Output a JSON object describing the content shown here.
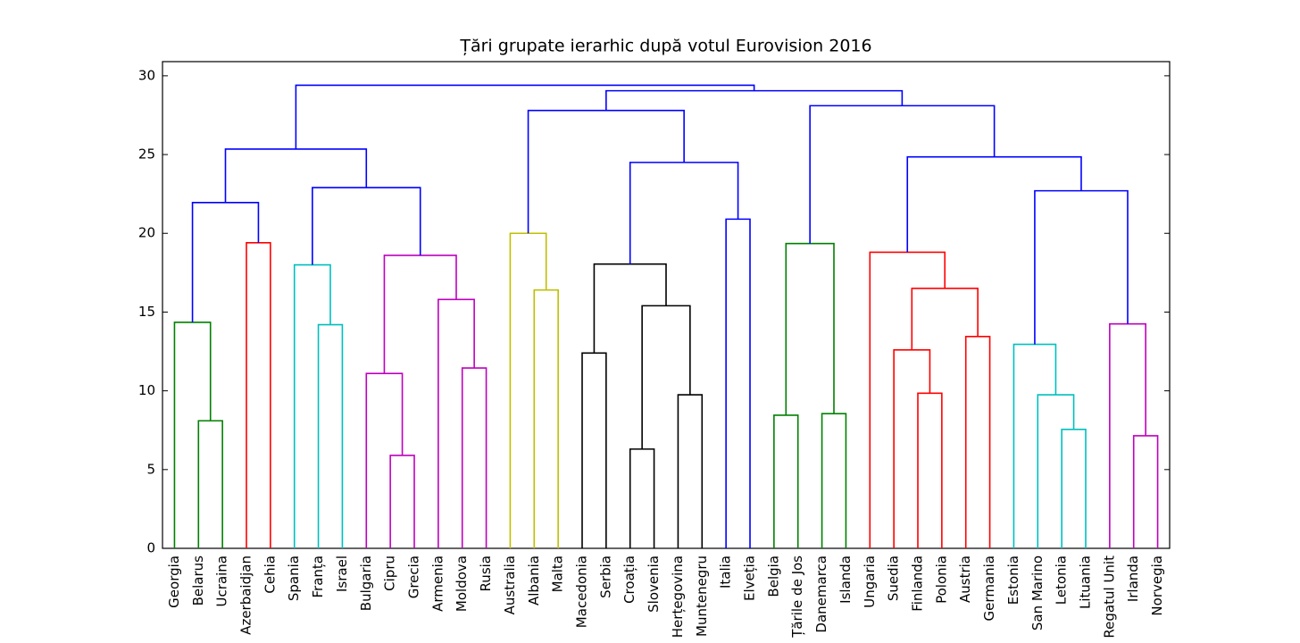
{
  "chart_data": {
    "type": "dendrogram",
    "title": "Țări grupate ierarhic după votul Eurovision 2016",
    "categories": [
      "Georgia",
      "Belarus",
      "Ucraina",
      "Azerbaidjan",
      "Cehia",
      "Spania",
      "Franța",
      "Israel",
      "Bulgaria",
      "Cipru",
      "Grecia",
      "Armenia",
      "Moldova",
      "Rusia",
      "Australia",
      "Albania",
      "Malta",
      "Macedonia",
      "Serbia",
      "Croația",
      "Slovenia",
      "Herțegovina",
      "Muntenegru",
      "Italia",
      "Elveția",
      "Belgia",
      "Țările de Jos",
      "Danemarca",
      "Islanda",
      "Ungaria",
      "Suedia",
      "Finlanda",
      "Polonia",
      "Austria",
      "Germania",
      "Estonia",
      "San Marino",
      "Letonia",
      "Lituania",
      "Regatul Unit",
      "Irlanda",
      "Norvegia"
    ],
    "links": [
      {
        "children": [
          1,
          2
        ],
        "height": 8.1,
        "color": "#008000"
      },
      {
        "children": [
          0,
          42
        ],
        "height": 14.35,
        "color": "#008000"
      },
      {
        "children": [
          3,
          4
        ],
        "height": 19.4,
        "color": "#ff0000"
      },
      {
        "children": [
          43,
          44
        ],
        "height": 21.95,
        "color": "#0000ff"
      },
      {
        "children": [
          6,
          7
        ],
        "height": 14.2,
        "color": "#00bfbf"
      },
      {
        "children": [
          5,
          46
        ],
        "height": 18.0,
        "color": "#00bfbf"
      },
      {
        "children": [
          9,
          10
        ],
        "height": 5.9,
        "color": "#bf00bf"
      },
      {
        "children": [
          8,
          48
        ],
        "height": 11.1,
        "color": "#bf00bf"
      },
      {
        "children": [
          12,
          13
        ],
        "height": 11.45,
        "color": "#bf00bf"
      },
      {
        "children": [
          11,
          50
        ],
        "height": 15.8,
        "color": "#bf00bf"
      },
      {
        "children": [
          49,
          51
        ],
        "height": 18.6,
        "color": "#bf00bf"
      },
      {
        "children": [
          47,
          52
        ],
        "height": 22.9,
        "color": "#0000ff"
      },
      {
        "children": [
          45,
          53
        ],
        "height": 25.35,
        "color": "#0000ff"
      },
      {
        "children": [
          15,
          16
        ],
        "height": 16.4,
        "color": "#bfbf00"
      },
      {
        "children": [
          14,
          55
        ],
        "height": 20.0,
        "color": "#bfbf00"
      },
      {
        "children": [
          17,
          18
        ],
        "height": 12.4,
        "color": "#000000"
      },
      {
        "children": [
          19,
          20
        ],
        "height": 6.3,
        "color": "#000000"
      },
      {
        "children": [
          21,
          22
        ],
        "height": 9.75,
        "color": "#000000"
      },
      {
        "children": [
          58,
          59
        ],
        "height": 15.4,
        "color": "#000000"
      },
      {
        "children": [
          57,
          60
        ],
        "height": 18.05,
        "color": "#000000"
      },
      {
        "children": [
          23,
          24
        ],
        "height": 20.9,
        "color": "#0000ff"
      },
      {
        "children": [
          61,
          62
        ],
        "height": 24.5,
        "color": "#0000ff"
      },
      {
        "children": [
          56,
          63
        ],
        "height": 27.8,
        "color": "#0000ff"
      },
      {
        "children": [
          25,
          26
        ],
        "height": 8.45,
        "color": "#008000"
      },
      {
        "children": [
          27,
          28
        ],
        "height": 8.55,
        "color": "#008000"
      },
      {
        "children": [
          65,
          66
        ],
        "height": 19.35,
        "color": "#008000"
      },
      {
        "children": [
          31,
          32
        ],
        "height": 9.85,
        "color": "#ff0000"
      },
      {
        "children": [
          30,
          68
        ],
        "height": 12.6,
        "color": "#ff0000"
      },
      {
        "children": [
          33,
          34
        ],
        "height": 13.45,
        "color": "#ff0000"
      },
      {
        "children": [
          69,
          70
        ],
        "height": 16.5,
        "color": "#ff0000"
      },
      {
        "children": [
          29,
          71
        ],
        "height": 18.8,
        "color": "#ff0000"
      },
      {
        "children": [
          37,
          38
        ],
        "height": 7.55,
        "color": "#00bfbf"
      },
      {
        "children": [
          36,
          73
        ],
        "height": 9.75,
        "color": "#00bfbf"
      },
      {
        "children": [
          35,
          74
        ],
        "height": 12.95,
        "color": "#00bfbf"
      },
      {
        "children": [
          40,
          41
        ],
        "height": 7.15,
        "color": "#bf00bf"
      },
      {
        "children": [
          39,
          76
        ],
        "height": 14.25,
        "color": "#bf00bf"
      },
      {
        "children": [
          75,
          77
        ],
        "height": 22.7,
        "color": "#0000ff"
      },
      {
        "children": [
          72,
          78
        ],
        "height": 24.85,
        "color": "#0000ff"
      },
      {
        "children": [
          67,
          79
        ],
        "height": 28.1,
        "color": "#0000ff"
      },
      {
        "children": [
          64,
          80
        ],
        "height": 29.05,
        "color": "#0000ff"
      },
      {
        "children": [
          54,
          81
        ],
        "height": 29.4,
        "color": "#0000ff"
      }
    ],
    "ylim": [
      0,
      30.9
    ],
    "yticks": [
      0,
      5,
      10,
      15,
      20,
      25,
      30
    ]
  }
}
